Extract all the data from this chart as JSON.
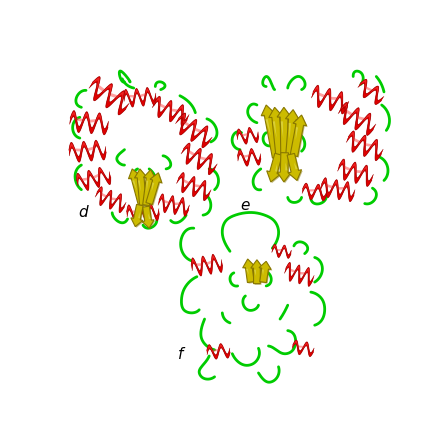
{
  "background_color": "#ffffff",
  "label_d": "d",
  "label_e": "e",
  "label_f": "f",
  "label_fontsize": 11,
  "helix_color": "#dd0000",
  "helix_edge": "#990000",
  "helix_light": "#ff4444",
  "sheet_color": "#ccbb00",
  "sheet_edge": "#887700",
  "loop_color": "#00cc00",
  "loop_lw": 2.0
}
